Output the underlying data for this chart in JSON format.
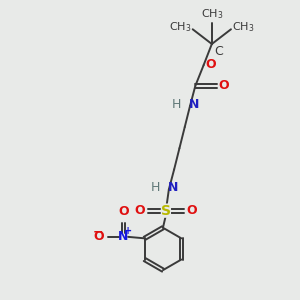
{
  "bg_color": "#e8eae8",
  "atom_colors": {
    "C": "#3a3a3a",
    "N": "#2020c0",
    "O": "#e01010",
    "S": "#b8b800",
    "H": "#607878",
    "N_plus": "#1818e0"
  },
  "bond_color": "#3a3a3a",
  "fs": 9,
  "fs_sub": 7,
  "lw": 1.4
}
